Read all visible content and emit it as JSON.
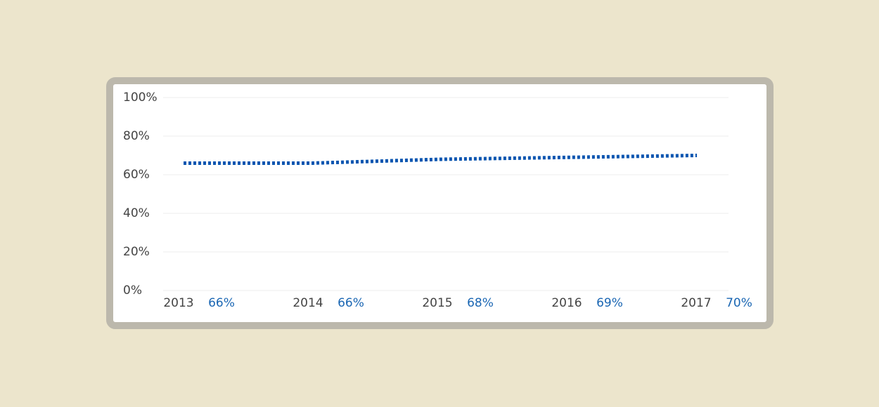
{
  "chart_data": {
    "type": "line",
    "x": [
      "2013",
      "2014",
      "2015",
      "2016",
      "2017"
    ],
    "series": [
      {
        "values": [
          66,
          66,
          68,
          69,
          70
        ],
        "value_labels": [
          "66%",
          "66%",
          "68%",
          "69%",
          "70%"
        ],
        "color": "#0a55b0"
      }
    ],
    "ylim": [
      0,
      100
    ],
    "yticks": [
      {
        "value": 0,
        "label": "0%"
      },
      {
        "value": 20,
        "label": "20%"
      },
      {
        "value": 40,
        "label": "40%"
      },
      {
        "value": 60,
        "label": "60%"
      },
      {
        "value": 80,
        "label": "80%"
      },
      {
        "value": 100,
        "label": "100%"
      }
    ],
    "grid": true,
    "line_style": "dotted"
  }
}
